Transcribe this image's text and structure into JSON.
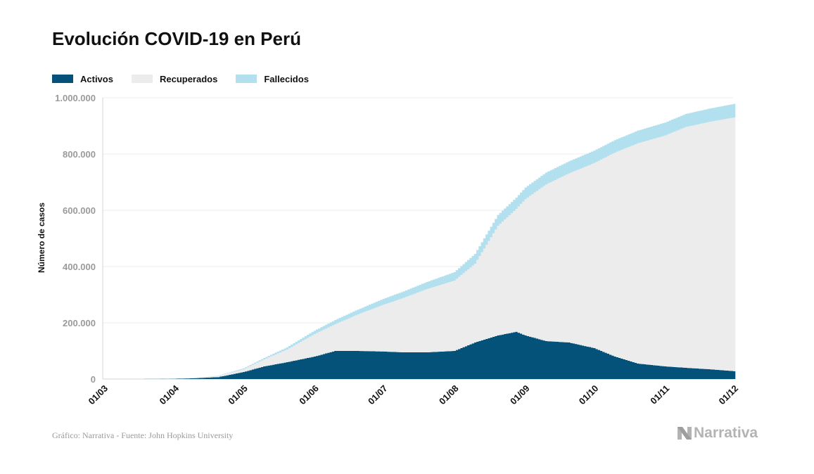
{
  "chart_data": {
    "type": "area",
    "stacked": true,
    "title": "Evolución COVID-19 en Perú",
    "ylabel": "Número de casos",
    "xlabel": "",
    "ylim": [
      0,
      1000000
    ],
    "yticks": [
      0,
      200000,
      400000,
      600000,
      800000,
      1000000
    ],
    "ytick_labels": [
      "0",
      "200.000",
      "400.000",
      "600.000",
      "800.000",
      "1.000.000"
    ],
    "x_range": [
      "2020-03-01",
      "2020-12-01"
    ],
    "xtick_dates": [
      "2020-03-01",
      "2020-04-01",
      "2020-05-01",
      "2020-06-01",
      "2020-07-01",
      "2020-08-01",
      "2020-09-01",
      "2020-10-01",
      "2020-11-01",
      "2020-12-01"
    ],
    "xtick_labels": [
      "01/03",
      "01/04",
      "01/05",
      "01/06",
      "01/07",
      "01/08",
      "01/09",
      "01/10",
      "01/11",
      "01/12"
    ],
    "grid": true,
    "legend_position": "top-left",
    "series_order": [
      "Activos",
      "Recuperados",
      "Fallecidos"
    ],
    "colors": {
      "Activos": "#04517a",
      "Recuperados": "#ececec",
      "Fallecidos": "#b3e0ee"
    },
    "dates": [
      "2020-03-06",
      "2020-03-15",
      "2020-03-25",
      "2020-04-01",
      "2020-04-10",
      "2020-04-20",
      "2020-05-01",
      "2020-05-10",
      "2020-05-20",
      "2020-06-01",
      "2020-06-10",
      "2020-06-20",
      "2020-07-01",
      "2020-07-10",
      "2020-07-20",
      "2020-08-01",
      "2020-08-10",
      "2020-08-20",
      "2020-08-28",
      "2020-09-01",
      "2020-09-10",
      "2020-09-20",
      "2020-10-01",
      "2020-10-10",
      "2020-10-20",
      "2020-11-01",
      "2020-11-10",
      "2020-11-20",
      "2020-12-01"
    ],
    "series": [
      {
        "name": "Activos",
        "values": [
          0,
          50,
          400,
          1000,
          3000,
          7000,
          25000,
          45000,
          60000,
          80000,
          100000,
          100000,
          98000,
          95000,
          95000,
          100000,
          130000,
          155000,
          168000,
          155000,
          135000,
          130000,
          110000,
          80000,
          55000,
          45000,
          40000,
          35000,
          28000
        ]
      },
      {
        "name": "Recuperados",
        "values": [
          0,
          0,
          0,
          500,
          1500,
          4000,
          10000,
          25000,
          45000,
          80000,
          95000,
          130000,
          166000,
          194000,
          225000,
          250000,
          280000,
          390000,
          437000,
          485000,
          557000,
          601000,
          658000,
          725000,
          783000,
          821000,
          856000,
          879000,
          902000
        ]
      },
      {
        "name": "Fallecidos",
        "values": [
          0,
          0,
          30,
          150,
          400,
          1100,
          3000,
          5000,
          7600,
          12000,
          15000,
          17000,
          21000,
          23000,
          25000,
          30000,
          35000,
          38000,
          40000,
          41000,
          42000,
          43000,
          44000,
          44500,
          45000,
          46000,
          46500,
          47000,
          48000
        ]
      }
    ]
  },
  "source": "Gráfico: Narrativa - Fuente: John Hopkins University",
  "brand": {
    "name": "Narrativa",
    "color": "#b3b3b3"
  }
}
